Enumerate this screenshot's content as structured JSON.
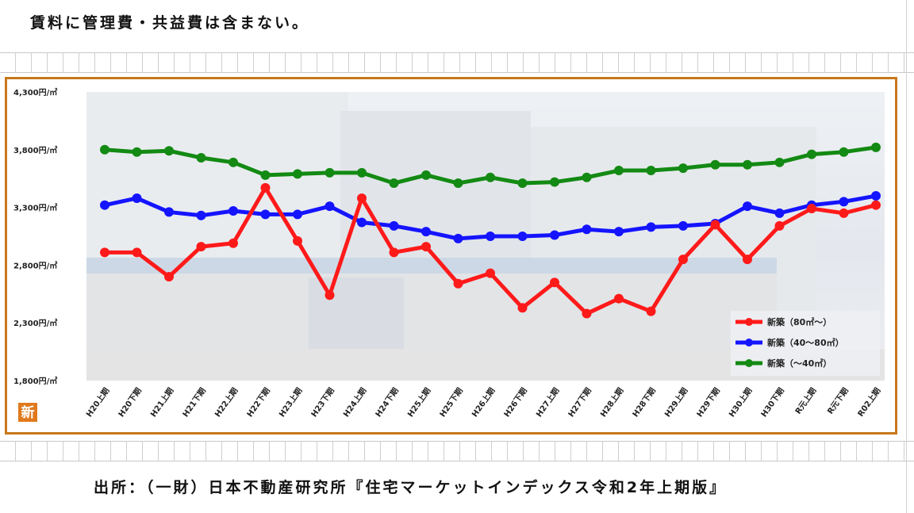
{
  "page": {
    "note": "賃料に管理費・共益費は含まない。",
    "source": "出所：（一財）日本不動産研究所『住宅マーケットインデックス令和2年上期版』",
    "badge": "新"
  },
  "chart_data": {
    "type": "line",
    "categories": [
      "H20上期",
      "H20下期",
      "H21上期",
      "H21下期",
      "H22上期",
      "H22下期",
      "H23上期",
      "H23下期",
      "H24上期",
      "H24下期",
      "H25上期",
      "H25下期",
      "H26上期",
      "H26下期",
      "H27上期",
      "H27下期",
      "H28上期",
      "H28下期",
      "H29上期",
      "H29下期",
      "H30上期",
      "H30下期",
      "R元上期",
      "R元下期",
      "R02上期"
    ],
    "ylim": [
      1800,
      4300
    ],
    "yticks": [
      1800,
      2300,
      2800,
      3300,
      3800,
      4300
    ],
    "ytick_labels": [
      "1,800円/㎡",
      "2,300円/㎡",
      "2,800円/㎡",
      "3,300円/㎡",
      "3,800円/㎡",
      "4,300円/㎡"
    ],
    "grid": false,
    "legend_position": "bottom-right",
    "series": [
      {
        "name": "新築（80㎡～）",
        "color": "#ff1a1a",
        "values": [
          2910,
          2910,
          2700,
          2960,
          2990,
          3470,
          3010,
          2540,
          3380,
          2910,
          2960,
          2640,
          2730,
          2430,
          2650,
          2380,
          2510,
          2400,
          2850,
          3150,
          2850,
          3140,
          3290,
          3250,
          3320
        ]
      },
      {
        "name": "新築（40～80㎡）",
        "color": "#1414ff",
        "values": [
          3320,
          3380,
          3260,
          3230,
          3270,
          3240,
          3240,
          3310,
          3170,
          3140,
          3090,
          3030,
          3050,
          3050,
          3060,
          3110,
          3090,
          3130,
          3140,
          3160,
          3310,
          3250,
          3320,
          3350,
          3400
        ]
      },
      {
        "name": "新築（～40㎡）",
        "color": "#138a13",
        "values": [
          3800,
          3780,
          3790,
          3730,
          3690,
          3580,
          3590,
          3600,
          3600,
          3510,
          3580,
          3510,
          3560,
          3510,
          3520,
          3560,
          3620,
          3620,
          3640,
          3670,
          3670,
          3690,
          3760,
          3780,
          3820
        ]
      }
    ]
  }
}
